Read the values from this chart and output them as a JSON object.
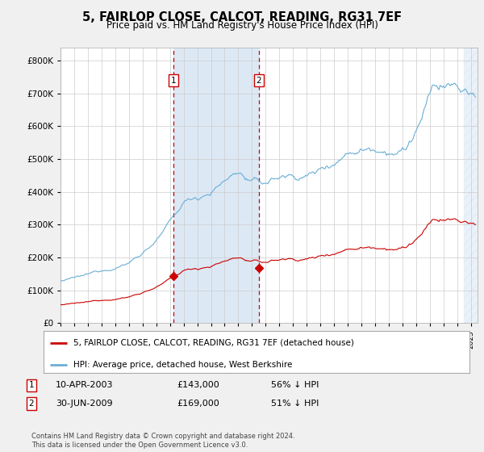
{
  "title": "5, FAIRLOP CLOSE, CALCOT, READING, RG31 7EF",
  "subtitle": "Price paid vs. HM Land Registry's House Price Index (HPI)",
  "yticks": [
    0,
    100000,
    200000,
    300000,
    400000,
    500000,
    600000,
    700000,
    800000
  ],
  "ylim": [
    0,
    840000
  ],
  "xlim_start": 1995.0,
  "xlim_end": 2025.3,
  "purchase1_date": 2003.27,
  "purchase1_price": 143000,
  "purchase1_label": "1",
  "purchase2_date": 2009.5,
  "purchase2_price": 169000,
  "purchase2_label": "2",
  "legend_entries": [
    "5, FAIRLOP CLOSE, CALCOT, READING, RG31 7EF (detached house)",
    "HPI: Average price, detached house, West Berkshire"
  ],
  "footer": "Contains HM Land Registry data © Crown copyright and database right 2024.\nThis data is licensed under the Open Government Licence v3.0.",
  "hpi_color": "#6baed6",
  "price_color": "#cc0000",
  "bg_color": "#f0f0f0",
  "plot_bg_color": "#ffffff",
  "grid_color": "#cccccc",
  "shade_color": "#dce9f5",
  "dashed_color": "#cc0000",
  "hatch_color": "#dce9f5"
}
